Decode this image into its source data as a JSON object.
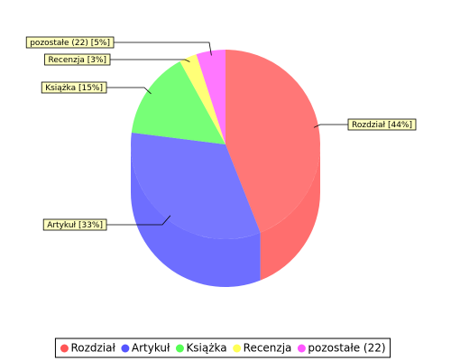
{
  "chart_data": {
    "type": "pie",
    "categories": [
      "Rozdział",
      "Artykuł",
      "Książka",
      "Recenzja",
      "pozostałe (22)"
    ],
    "values": [
      44,
      33,
      15,
      3,
      5
    ],
    "value_labels": [
      "Rozdział [44%]",
      "Artykuł [33%]",
      "Książka [15%]",
      "Recenzja [3%]",
      "pozostałe (22) [5%]"
    ],
    "colors": [
      "#ff5555",
      "#5555ff",
      "#55ff55",
      "#ffff55",
      "#ff55ff"
    ],
    "legend": "bottom"
  }
}
